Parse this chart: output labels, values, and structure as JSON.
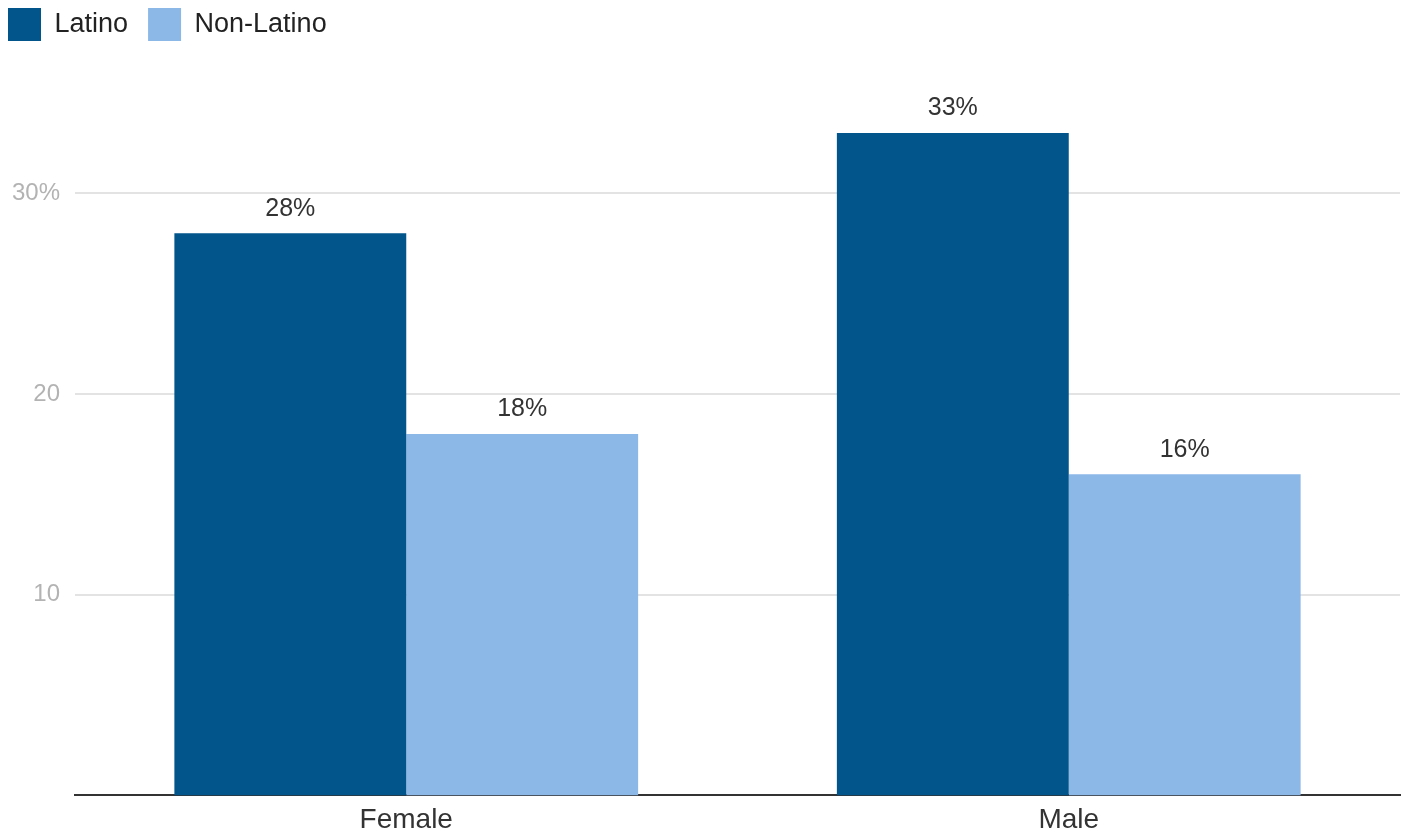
{
  "chart_data": {
    "type": "bar",
    "categories": [
      "Female",
      "Male"
    ],
    "series": [
      {
        "name": "Latino",
        "color": "#01558a",
        "values": [
          28,
          33
        ],
        "value_labels": [
          "28%",
          "33%"
        ]
      },
      {
        "name": "Non-Latino",
        "color": "#8cb8e8",
        "values": [
          18,
          16
        ],
        "value_labels": [
          "18%",
          "16%"
        ]
      }
    ],
    "ylim": [
      0,
      33
    ],
    "yticks": [
      10,
      20,
      {
        "value": 30,
        "label": "30%"
      }
    ],
    "grid": "y",
    "legend": "top left"
  }
}
